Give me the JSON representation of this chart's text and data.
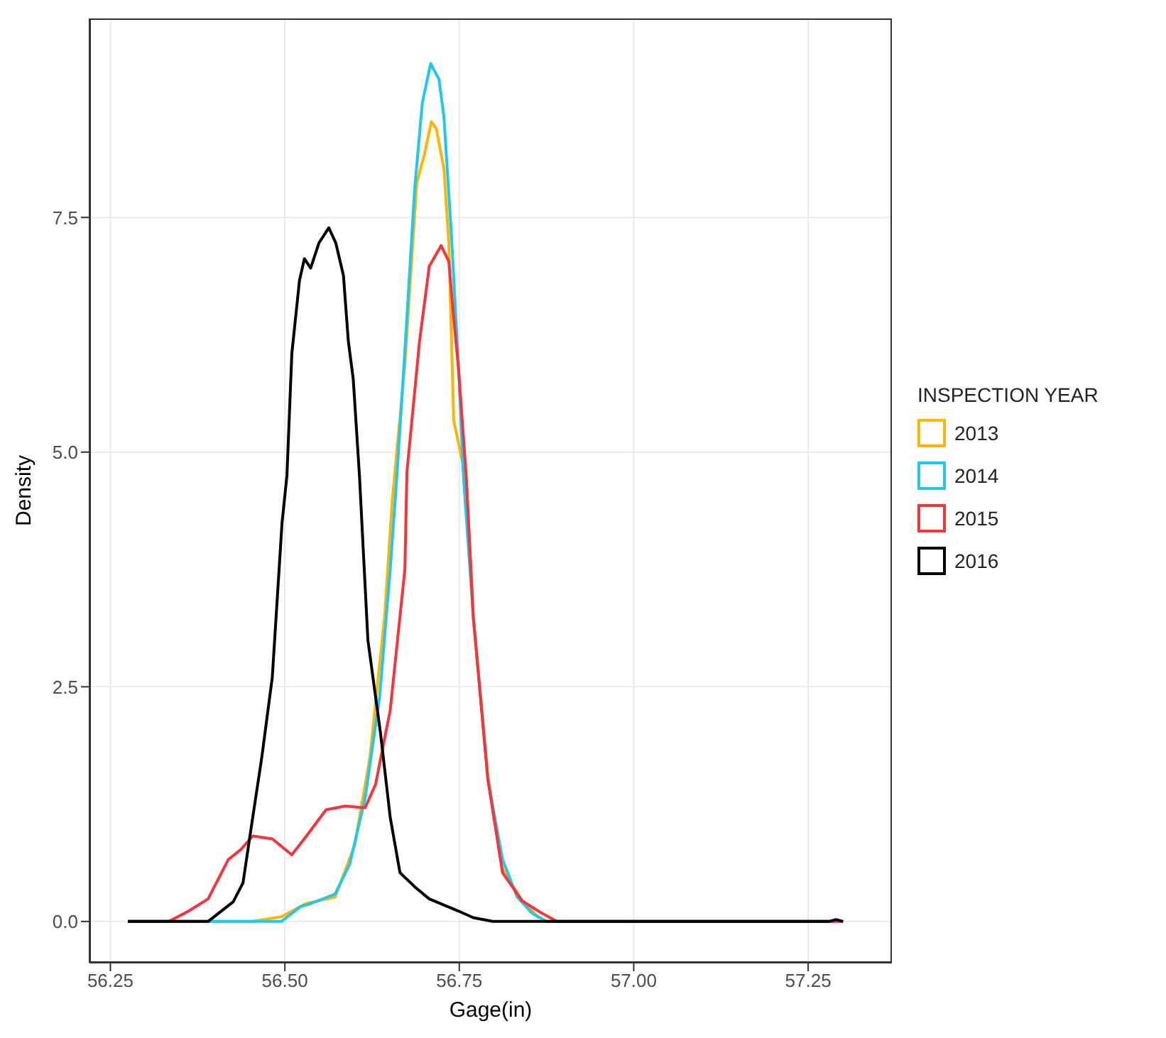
{
  "chart_data": {
    "type": "line",
    "xlabel": "Gage(in)",
    "ylabel": "Density",
    "legend_title": "INSPECTION YEAR",
    "legend": "right",
    "grid": true,
    "marker": "none",
    "line_style": "solid",
    "xlim": [
      56.22,
      57.37
    ],
    "ylim": [
      -0.44,
      9.62
    ],
    "xticks": [
      56.25,
      {
        "value": 56.5,
        "label": "56.50"
      },
      56.75,
      {
        "value": 57,
        "label": "57.00"
      },
      57.25
    ],
    "yticks": [
      {
        "value": 0,
        "label": "0.0"
      },
      2.5,
      {
        "value": 5,
        "label": "5.0"
      },
      7.5
    ],
    "series": [
      {
        "name": "2013",
        "color": "#ffb400",
        "x": [
          56.275,
          56.453,
          56.495,
          56.53,
          56.572,
          56.6,
          56.622,
          56.643,
          56.654,
          56.672,
          56.689,
          56.7,
          56.71,
          56.717,
          56.728,
          56.735,
          56.742,
          56.76,
          56.77,
          56.791,
          56.812,
          56.84,
          56.861,
          56.875,
          57.3
        ],
        "values": [
          0,
          0,
          0.05,
          0.19,
          0.26,
          0.81,
          1.75,
          3.25,
          4.49,
          5.93,
          7.87,
          8.17,
          8.52,
          8.45,
          8.02,
          7.23,
          5.34,
          4.7,
          3.25,
          1.55,
          0.56,
          0.22,
          0.06,
          0,
          0
        ]
      },
      {
        "name": "2014",
        "color": "#1ec8f5",
        "x": [
          56.275,
          56.495,
          56.523,
          56.537,
          56.572,
          56.593,
          56.615,
          56.636,
          56.651,
          56.661,
          56.672,
          56.686,
          56.697,
          56.709,
          56.721,
          56.728,
          56.739,
          56.749,
          56.756,
          56.77,
          56.791,
          56.812,
          56.833,
          56.854,
          56.875,
          57.3
        ],
        "values": [
          0,
          0,
          0.16,
          0.19,
          0.29,
          0.61,
          1.31,
          2.4,
          3.75,
          4.79,
          6.08,
          7.8,
          8.72,
          9.14,
          8.97,
          8.57,
          7.28,
          5.88,
          4.74,
          3.25,
          1.51,
          0.66,
          0.26,
          0.09,
          0,
          0
        ]
      },
      {
        "name": "2015",
        "color": "#f8333a",
        "x": [
          56.275,
          56.334,
          56.362,
          56.39,
          56.419,
          56.436,
          56.454,
          56.482,
          56.51,
          56.531,
          56.559,
          56.587,
          56.615,
          56.63,
          56.651,
          56.672,
          56.675,
          56.693,
          56.707,
          56.724,
          56.735,
          56.742,
          56.749,
          56.76,
          56.77,
          56.791,
          56.812,
          56.84,
          56.868,
          56.89,
          57.3
        ],
        "values": [
          0,
          0,
          0.11,
          0.24,
          0.66,
          0.76,
          0.91,
          0.88,
          0.71,
          0.91,
          1.19,
          1.23,
          1.21,
          1.46,
          2.25,
          3.75,
          4.79,
          6.18,
          6.98,
          7.2,
          7.03,
          6.43,
          5.88,
          4.74,
          3.25,
          1.51,
          0.52,
          0.22,
          0.09,
          0,
          0
        ]
      },
      {
        "name": "2016",
        "color": "#000000",
        "x": [
          56.275,
          56.39,
          56.426,
          56.44,
          56.453,
          56.467,
          56.482,
          56.496,
          56.503,
          56.51,
          56.521,
          56.528,
          56.537,
          56.549,
          56.563,
          56.573,
          56.584,
          56.591,
          56.598,
          56.607,
          56.619,
          56.637,
          56.651,
          56.665,
          56.686,
          56.707,
          56.749,
          56.77,
          56.798,
          57.28,
          57.29,
          57.3
        ],
        "values": [
          0,
          0,
          0.21,
          0.41,
          1.06,
          1.75,
          2.6,
          4.25,
          4.75,
          6.05,
          6.83,
          7.06,
          6.96,
          7.23,
          7.39,
          7.23,
          6.88,
          6.18,
          5.78,
          4.74,
          3.0,
          2.01,
          1.11,
          0.52,
          0.37,
          0.24,
          0.11,
          0.04,
          0,
          0,
          0.02,
          0
        ]
      }
    ]
  }
}
